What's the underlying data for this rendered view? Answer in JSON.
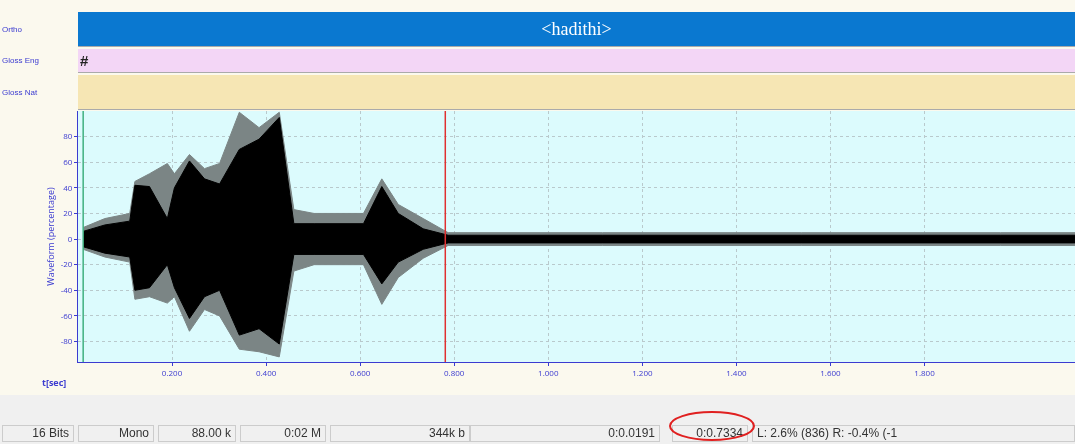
{
  "chart_data": [
    {
      "type": "other",
      "categories": [
        "Ortho",
        "Gloss Eng",
        "Gloss Nat"
      ],
      "colors": [
        "#0a78d0",
        "#f3d6f6",
        "#f6e6b4"
      ],
      "annotations": [
        "<hadithi>",
        "#"
      ]
    },
    {
      "type": "area",
      "xlabel": "t[sec]",
      "ylabel": "Waveform (percentage)",
      "x": [
        0.011,
        0.057,
        0.11,
        0.121,
        0.152,
        0.19,
        0.205,
        0.237,
        0.269,
        0.301,
        0.343,
        0.385,
        0.428,
        0.459,
        0.502,
        0.607,
        0.646,
        0.681,
        0.734,
        0.787,
        1.115,
        1.539,
        1.962,
        2.12
      ],
      "series": [
        {
          "color": "#7b8585",
          "values": [
            9,
            16,
            20,
            45,
            51,
            59,
            51,
            66,
            55,
            59,
            99,
            87,
            99,
            23,
            20,
            20,
            47,
            27,
            16,
            5,
            5,
            5,
            5,
            5
          ]
        },
        {
          "color": "#7b8585",
          "values": [
            -8,
            -14,
            -18,
            -47,
            -45,
            -50,
            -45,
            -72,
            -55,
            -60,
            -86,
            -88,
            -92,
            -25,
            -20,
            -20,
            -51,
            -30,
            -15,
            -5,
            -5,
            -5,
            -5,
            -5
          ]
        },
        {
          "color": "#000000",
          "values": [
            6,
            11,
            14,
            42,
            41,
            16,
            40,
            61,
            47,
            43,
            70,
            78,
            95,
            12,
            12,
            12,
            41,
            20,
            8,
            3,
            3,
            3,
            3,
            3
          ]
        },
        {
          "color": "#000000",
          "values": [
            -6,
            -11,
            -14,
            -40,
            -38,
            -20,
            -38,
            -62,
            -45,
            -40,
            -75,
            -70,
            -82,
            -12,
            -12,
            -12,
            -35,
            -18,
            -8,
            -3,
            -3,
            -3,
            -3,
            -3
          ]
        }
      ],
      "xlim": [
        0,
        2.12
      ],
      "xticks": [
        {
          "value": 0.2,
          "label": "0.200"
        },
        {
          "value": 0.4,
          "label": "0.400"
        },
        {
          "value": 0.6,
          "label": "0.600"
        },
        {
          "value": 0.8,
          "label": "0.800"
        },
        {
          "value": 1,
          "label": "1.000"
        },
        {
          "value": 1.2,
          "label": "1.200"
        },
        {
          "value": 1.4,
          "label": "1.400"
        },
        {
          "value": 1.6,
          "label": "1.600"
        },
        {
          "value": 1.8,
          "label": "1.800"
        }
      ],
      "ylim": [
        -96,
        100
      ],
      "yticks": [
        -80,
        -60,
        -40,
        -20,
        0,
        20,
        40,
        60,
        80
      ],
      "grid": true,
      "ref_lines": [
        {
          "axis": "x",
          "value": 0.011,
          "color": "#40b080"
        },
        {
          "axis": "x",
          "value": 0.781,
          "color": "#e03030"
        }
      ]
    },
    {
      "type": "other",
      "annotations": [
        "16 Bits",
        "Mono",
        "88.00 k",
        "0:02 M",
        "344k b",
        "0:0.0191",
        "0:0.7334",
        "L: 2.6% (836)  R: -0.4% (-1"
      ]
    }
  ]
}
